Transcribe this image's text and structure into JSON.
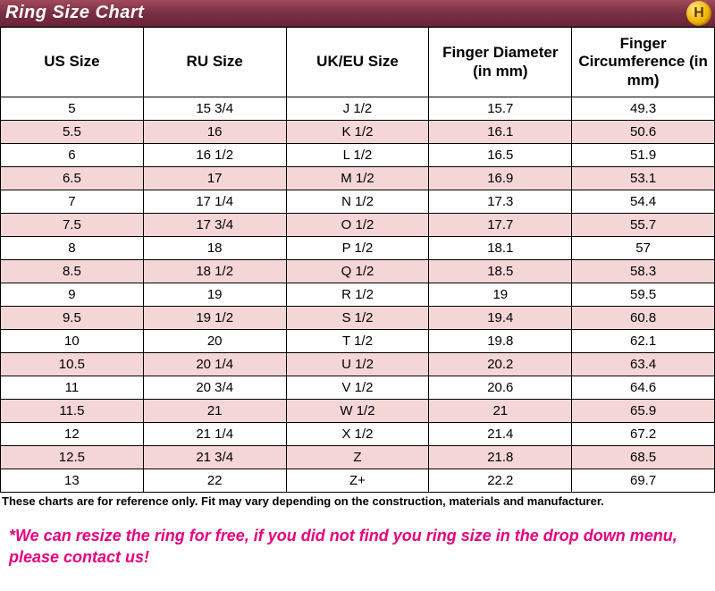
{
  "header": {
    "title": "Ring Size Chart",
    "logo_letter": "H",
    "bar_gradient_top": "#a04a5c",
    "bar_gradient_mid": "#7a3044",
    "bar_gradient_bottom": "#6a2438",
    "title_color": "#ffffff"
  },
  "table": {
    "columns": [
      "US Size",
      "RU Size",
      "UK/EU Size",
      "Finger Diameter (in mm)",
      "Finger Circumference (in mm)"
    ],
    "rows": [
      [
        "5",
        "15 3/4",
        "J 1/2",
        "15.7",
        "49.3"
      ],
      [
        "5.5",
        "16",
        "K 1/2",
        "16.1",
        "50.6"
      ],
      [
        "6",
        "16 1/2",
        "L 1/2",
        "16.5",
        "51.9"
      ],
      [
        "6.5",
        "17",
        "M 1/2",
        "16.9",
        "53.1"
      ],
      [
        "7",
        "17 1/4",
        "N 1/2",
        "17.3",
        "54.4"
      ],
      [
        "7.5",
        "17 3/4",
        "O 1/2",
        "17.7",
        "55.7"
      ],
      [
        "8",
        "18",
        "P 1/2",
        "18.1",
        "57"
      ],
      [
        "8.5",
        "18 1/2",
        "Q 1/2",
        "18.5",
        "58.3"
      ],
      [
        "9",
        "19",
        "R 1/2",
        "19",
        "59.5"
      ],
      [
        "9.5",
        "19 1/2",
        "S 1/2",
        "19.4",
        "60.8"
      ],
      [
        "10",
        "20",
        "T 1/2",
        "19.8",
        "62.1"
      ],
      [
        "10.5",
        "20 1/4",
        "U 1/2",
        "20.2",
        "63.4"
      ],
      [
        "11",
        "20 3/4",
        "V 1/2",
        "20.6",
        "64.6"
      ],
      [
        "11.5",
        "21",
        "W 1/2",
        "21",
        "65.9"
      ],
      [
        "12",
        "21 1/4",
        "X 1/2",
        "21.4",
        "67.2"
      ],
      [
        "12.5",
        "21 3/4",
        "Z",
        "21.8",
        "68.5"
      ],
      [
        "13",
        "22",
        "Z+",
        "22.2",
        "69.7"
      ]
    ],
    "header_bg": "#ffffff",
    "row_odd_bg": "#ffffff",
    "row_even_bg": "#f5d6d6",
    "border_color": "#000000",
    "header_fontsize": 17,
    "cell_fontsize": 15
  },
  "disclaimer": "These charts are for reference only. Fit may vary depending on the construction, materials and manufacturer.",
  "resize_note": "*We can resize the ring for free, if you did not find you ring size in the drop down menu, please contact us!",
  "resize_note_color": "#e6007e"
}
